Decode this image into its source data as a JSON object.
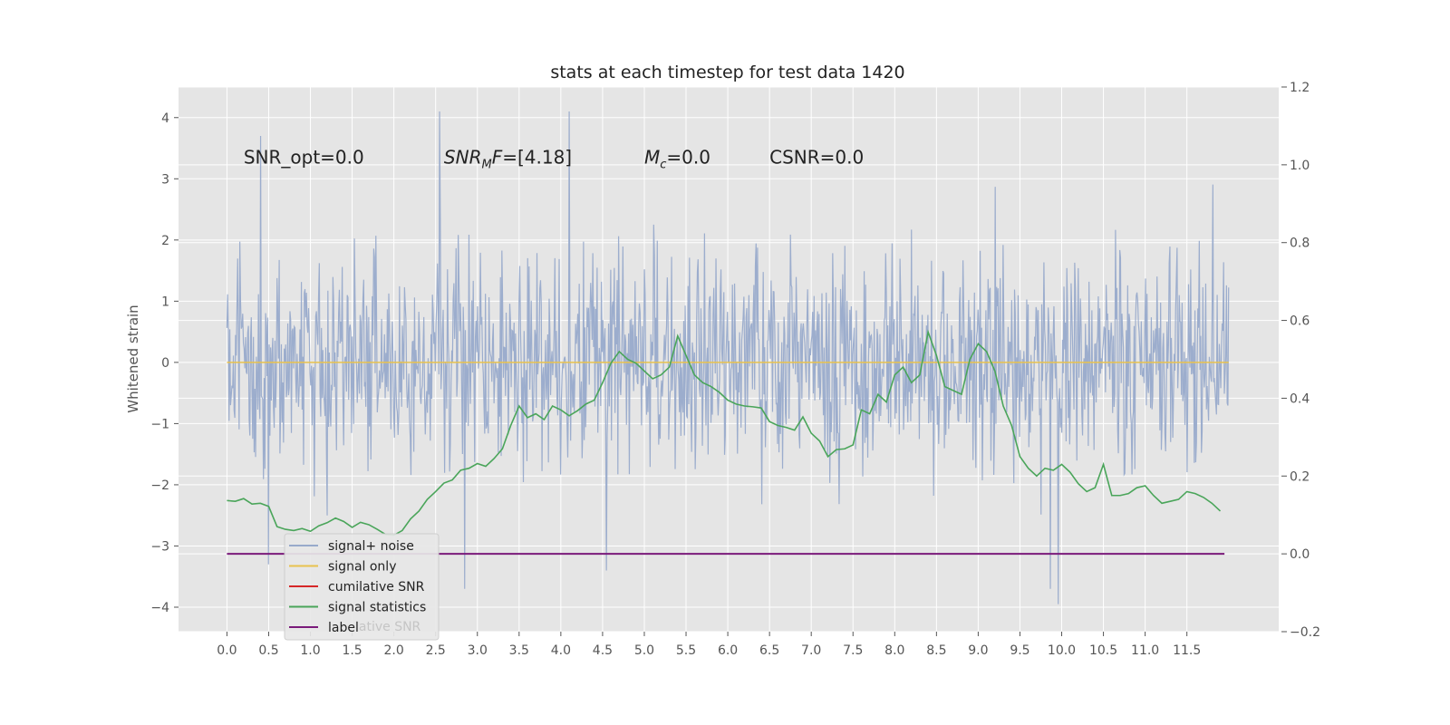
{
  "chart_data": {
    "type": "line",
    "title": "stats at each timestep for test data 1420",
    "ylabel": "Whitened strain",
    "xlabel": "",
    "xlim": [
      -0.58,
      12.6
    ],
    "ylim": [
      -4.4,
      4.5
    ],
    "y2lim": [
      -0.2,
      1.2
    ],
    "grid": true,
    "legend_position": "lower-left",
    "x_ticks": [
      "0.0",
      "0.5",
      "1.0",
      "1.5",
      "2.0",
      "2.5",
      "3.0",
      "3.5",
      "4.0",
      "4.5",
      "5.0",
      "5.5",
      "6.0",
      "6.5",
      "7.0",
      "7.5",
      "8.0",
      "8.5",
      "9.0",
      "9.5",
      "10.0",
      "10.5",
      "11.0",
      "11.5"
    ],
    "y_ticks": [
      "4",
      "3",
      "2",
      "1",
      "0",
      "−1",
      "−2",
      "−3",
      "−4"
    ],
    "y2_ticks": [
      "1.2",
      "1.0",
      "0.8",
      "0.6",
      "0.4",
      "0.2",
      "0.0",
      "−0.2"
    ],
    "annotations": [
      {
        "id": "snr-opt",
        "label": "SNR_opt=0.0",
        "x": 0.2,
        "y": 3.35
      },
      {
        "id": "snr-mf",
        "label": "[4.18]",
        "x": 2.6,
        "y": 3.35,
        "base": "SNR",
        "sub": "M",
        "tail": "F="
      },
      {
        "id": "mc",
        "label": "=0.0",
        "x": 5.0,
        "y": 3.35,
        "base": "M",
        "sub": "c"
      },
      {
        "id": "csnr",
        "label": "CSNR=0.0",
        "x": 6.5,
        "y": 3.35
      }
    ],
    "series": [
      {
        "name": "signal+ noise",
        "color": "#98aacb",
        "note": "whitened noise trace sampled across 0 to 12 s, roughly within -2.5 to 2.5 with spikes up to 4.1 and down to -3.9",
        "x_start": 0.0,
        "x_end": 12.0,
        "n_samples": 1400,
        "spikes": [
          [
            0.4,
            3.7
          ],
          [
            2.55,
            4.1
          ],
          [
            4.1,
            4.1
          ],
          [
            9.96,
            -3.95
          ],
          [
            9.86,
            -3.7
          ],
          [
            2.85,
            -3.7
          ],
          [
            1.2,
            -2.5
          ],
          [
            4.55,
            -3.4
          ],
          [
            0.5,
            -3.3
          ]
        ]
      },
      {
        "name": "signal only",
        "color": "#e8c24e",
        "x": [
          0.0,
          12.0
        ],
        "y": [
          0.0,
          0.0
        ]
      },
      {
        "name": "cumilative SNR",
        "color": "#d62728",
        "x": [],
        "y": []
      },
      {
        "name": "signal statistics",
        "color": "#4aa55a",
        "axis": "right",
        "x": [
          0.0,
          0.1,
          0.2,
          0.3,
          0.4,
          0.5,
          0.6,
          0.7,
          0.8,
          0.9,
          1.0,
          1.1,
          1.2,
          1.3,
          1.4,
          1.5,
          1.6,
          1.7,
          1.8,
          1.9,
          2.0,
          2.1,
          2.2,
          2.3,
          2.4,
          2.5,
          2.6,
          2.7,
          2.8,
          2.9,
          3.0,
          3.1,
          3.2,
          3.3,
          3.4,
          3.5,
          3.6,
          3.7,
          3.8,
          3.9,
          4.0,
          4.1,
          4.2,
          4.3,
          4.4,
          4.5,
          4.6,
          4.7,
          4.8,
          4.9,
          5.0,
          5.1,
          5.2,
          5.3,
          5.4,
          5.5,
          5.6,
          5.7,
          5.8,
          5.9,
          6.0,
          6.1,
          6.2,
          6.3,
          6.4,
          6.5,
          6.6,
          6.7,
          6.8,
          6.9,
          7.0,
          7.1,
          7.2,
          7.3,
          7.4,
          7.5,
          7.6,
          7.7,
          7.8,
          7.9,
          8.0,
          8.1,
          8.2,
          8.3,
          8.4,
          8.5,
          8.6,
          8.7,
          8.8,
          8.9,
          9.0,
          9.1,
          9.2,
          9.3,
          9.4,
          9.5,
          9.6,
          9.7,
          9.8,
          9.9,
          10.0,
          10.1,
          10.2,
          10.3,
          10.4,
          10.5,
          10.6,
          10.7,
          10.8,
          10.9,
          11.0,
          11.1,
          11.2,
          11.3,
          11.4,
          11.5,
          11.6,
          11.7,
          11.8,
          11.9
        ],
        "y": [
          0.137,
          0.135,
          0.142,
          0.128,
          0.13,
          0.122,
          0.07,
          0.063,
          0.06,
          0.065,
          0.058,
          0.072,
          0.08,
          0.092,
          0.083,
          0.068,
          0.081,
          0.075,
          0.063,
          0.05,
          0.048,
          0.06,
          0.09,
          0.11,
          0.14,
          0.16,
          0.182,
          0.19,
          0.215,
          0.22,
          0.232,
          0.225,
          0.245,
          0.27,
          0.33,
          0.38,
          0.35,
          0.36,
          0.345,
          0.38,
          0.37,
          0.355,
          0.368,
          0.385,
          0.395,
          0.44,
          0.49,
          0.52,
          0.5,
          0.49,
          0.47,
          0.45,
          0.46,
          0.48,
          0.56,
          0.51,
          0.46,
          0.44,
          0.43,
          0.415,
          0.395,
          0.385,
          0.38,
          0.378,
          0.375,
          0.34,
          0.33,
          0.325,
          0.318,
          0.352,
          0.31,
          0.29,
          0.25,
          0.268,
          0.27,
          0.28,
          0.37,
          0.36,
          0.41,
          0.39,
          0.46,
          0.48,
          0.44,
          0.46,
          0.57,
          0.51,
          0.43,
          0.42,
          0.41,
          0.5,
          0.54,
          0.52,
          0.47,
          0.38,
          0.33,
          0.25,
          0.22,
          0.2,
          0.22,
          0.215,
          0.23,
          0.21,
          0.18,
          0.16,
          0.17,
          0.23,
          0.15,
          0.15,
          0.155,
          0.17,
          0.175,
          0.15,
          0.13,
          0.135,
          0.14,
          0.16,
          0.155,
          0.145,
          0.13,
          0.11
        ]
      },
      {
        "name": "label",
        "color": "#7a1a7a",
        "axis": "right",
        "x": [
          0.0,
          11.95
        ],
        "y": [
          0.0,
          0.0
        ]
      }
    ],
    "legend_ghost_text": "lative SNR"
  }
}
